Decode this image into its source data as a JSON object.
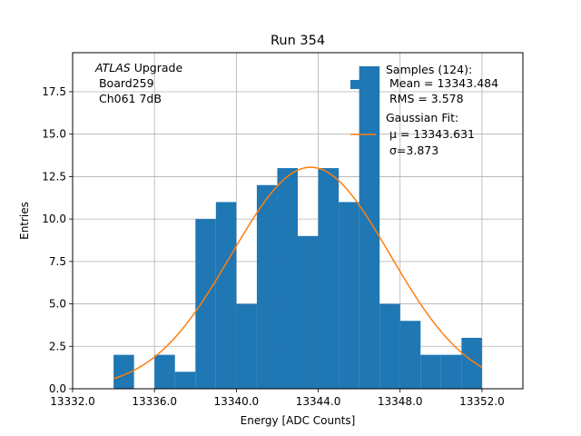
{
  "chart_data": {
    "type": "bar",
    "title": "Run 354",
    "xlabel": "Energy [ADC Counts]",
    "ylabel": "Entries",
    "xlim": [
      13332.0,
      13354.0
    ],
    "ylim": [
      0.0,
      19.8
    ],
    "grid": true,
    "x_ticks": [
      "13332.0",
      "13336.0",
      "13340.0",
      "13344.0",
      "13348.0",
      "13352.0"
    ],
    "y_ticks": [
      "0.0",
      "2.5",
      "5.0",
      "7.5",
      "10.0",
      "12.5",
      "15.0",
      "17.5"
    ],
    "bin_width": 1,
    "bins": [
      {
        "x": 13334,
        "count": 2
      },
      {
        "x": 13335,
        "count": 0
      },
      {
        "x": 13336,
        "count": 2
      },
      {
        "x": 13337,
        "count": 1
      },
      {
        "x": 13338,
        "count": 10
      },
      {
        "x": 13339,
        "count": 11
      },
      {
        "x": 13340,
        "count": 5
      },
      {
        "x": 13341,
        "count": 12
      },
      {
        "x": 13342,
        "count": 13
      },
      {
        "x": 13343,
        "count": 9
      },
      {
        "x": 13344,
        "count": 13
      },
      {
        "x": 13345,
        "count": 11
      },
      {
        "x": 13346,
        "count": 19
      },
      {
        "x": 13347,
        "count": 5
      },
      {
        "x": 13348,
        "count": 4
      },
      {
        "x": 13349,
        "count": 2
      },
      {
        "x": 13350,
        "count": 2
      },
      {
        "x": 13351,
        "count": 3
      }
    ],
    "fit": {
      "mu": 13343.631,
      "sigma": 3.873,
      "amplitude": 13.05,
      "x_range": [
        13334.0,
        13352.0
      ]
    },
    "annotation": {
      "italic": "ATLAS",
      "rest": " Upgrade",
      "line2": " Board259",
      "line3": " Ch061 7dB"
    },
    "legend": {
      "position": "top-right",
      "samples": [
        "Samples (124):",
        " Mean = 13343.484",
        " RMS = 3.578"
      ],
      "fit": [
        "Gaussian Fit:",
        "μ = 13343.631",
        "σ=3.873"
      ]
    },
    "colors": {
      "bars": "#1f77b4",
      "fit": "#ff7f0e",
      "grid": "#b0b0b0"
    }
  }
}
